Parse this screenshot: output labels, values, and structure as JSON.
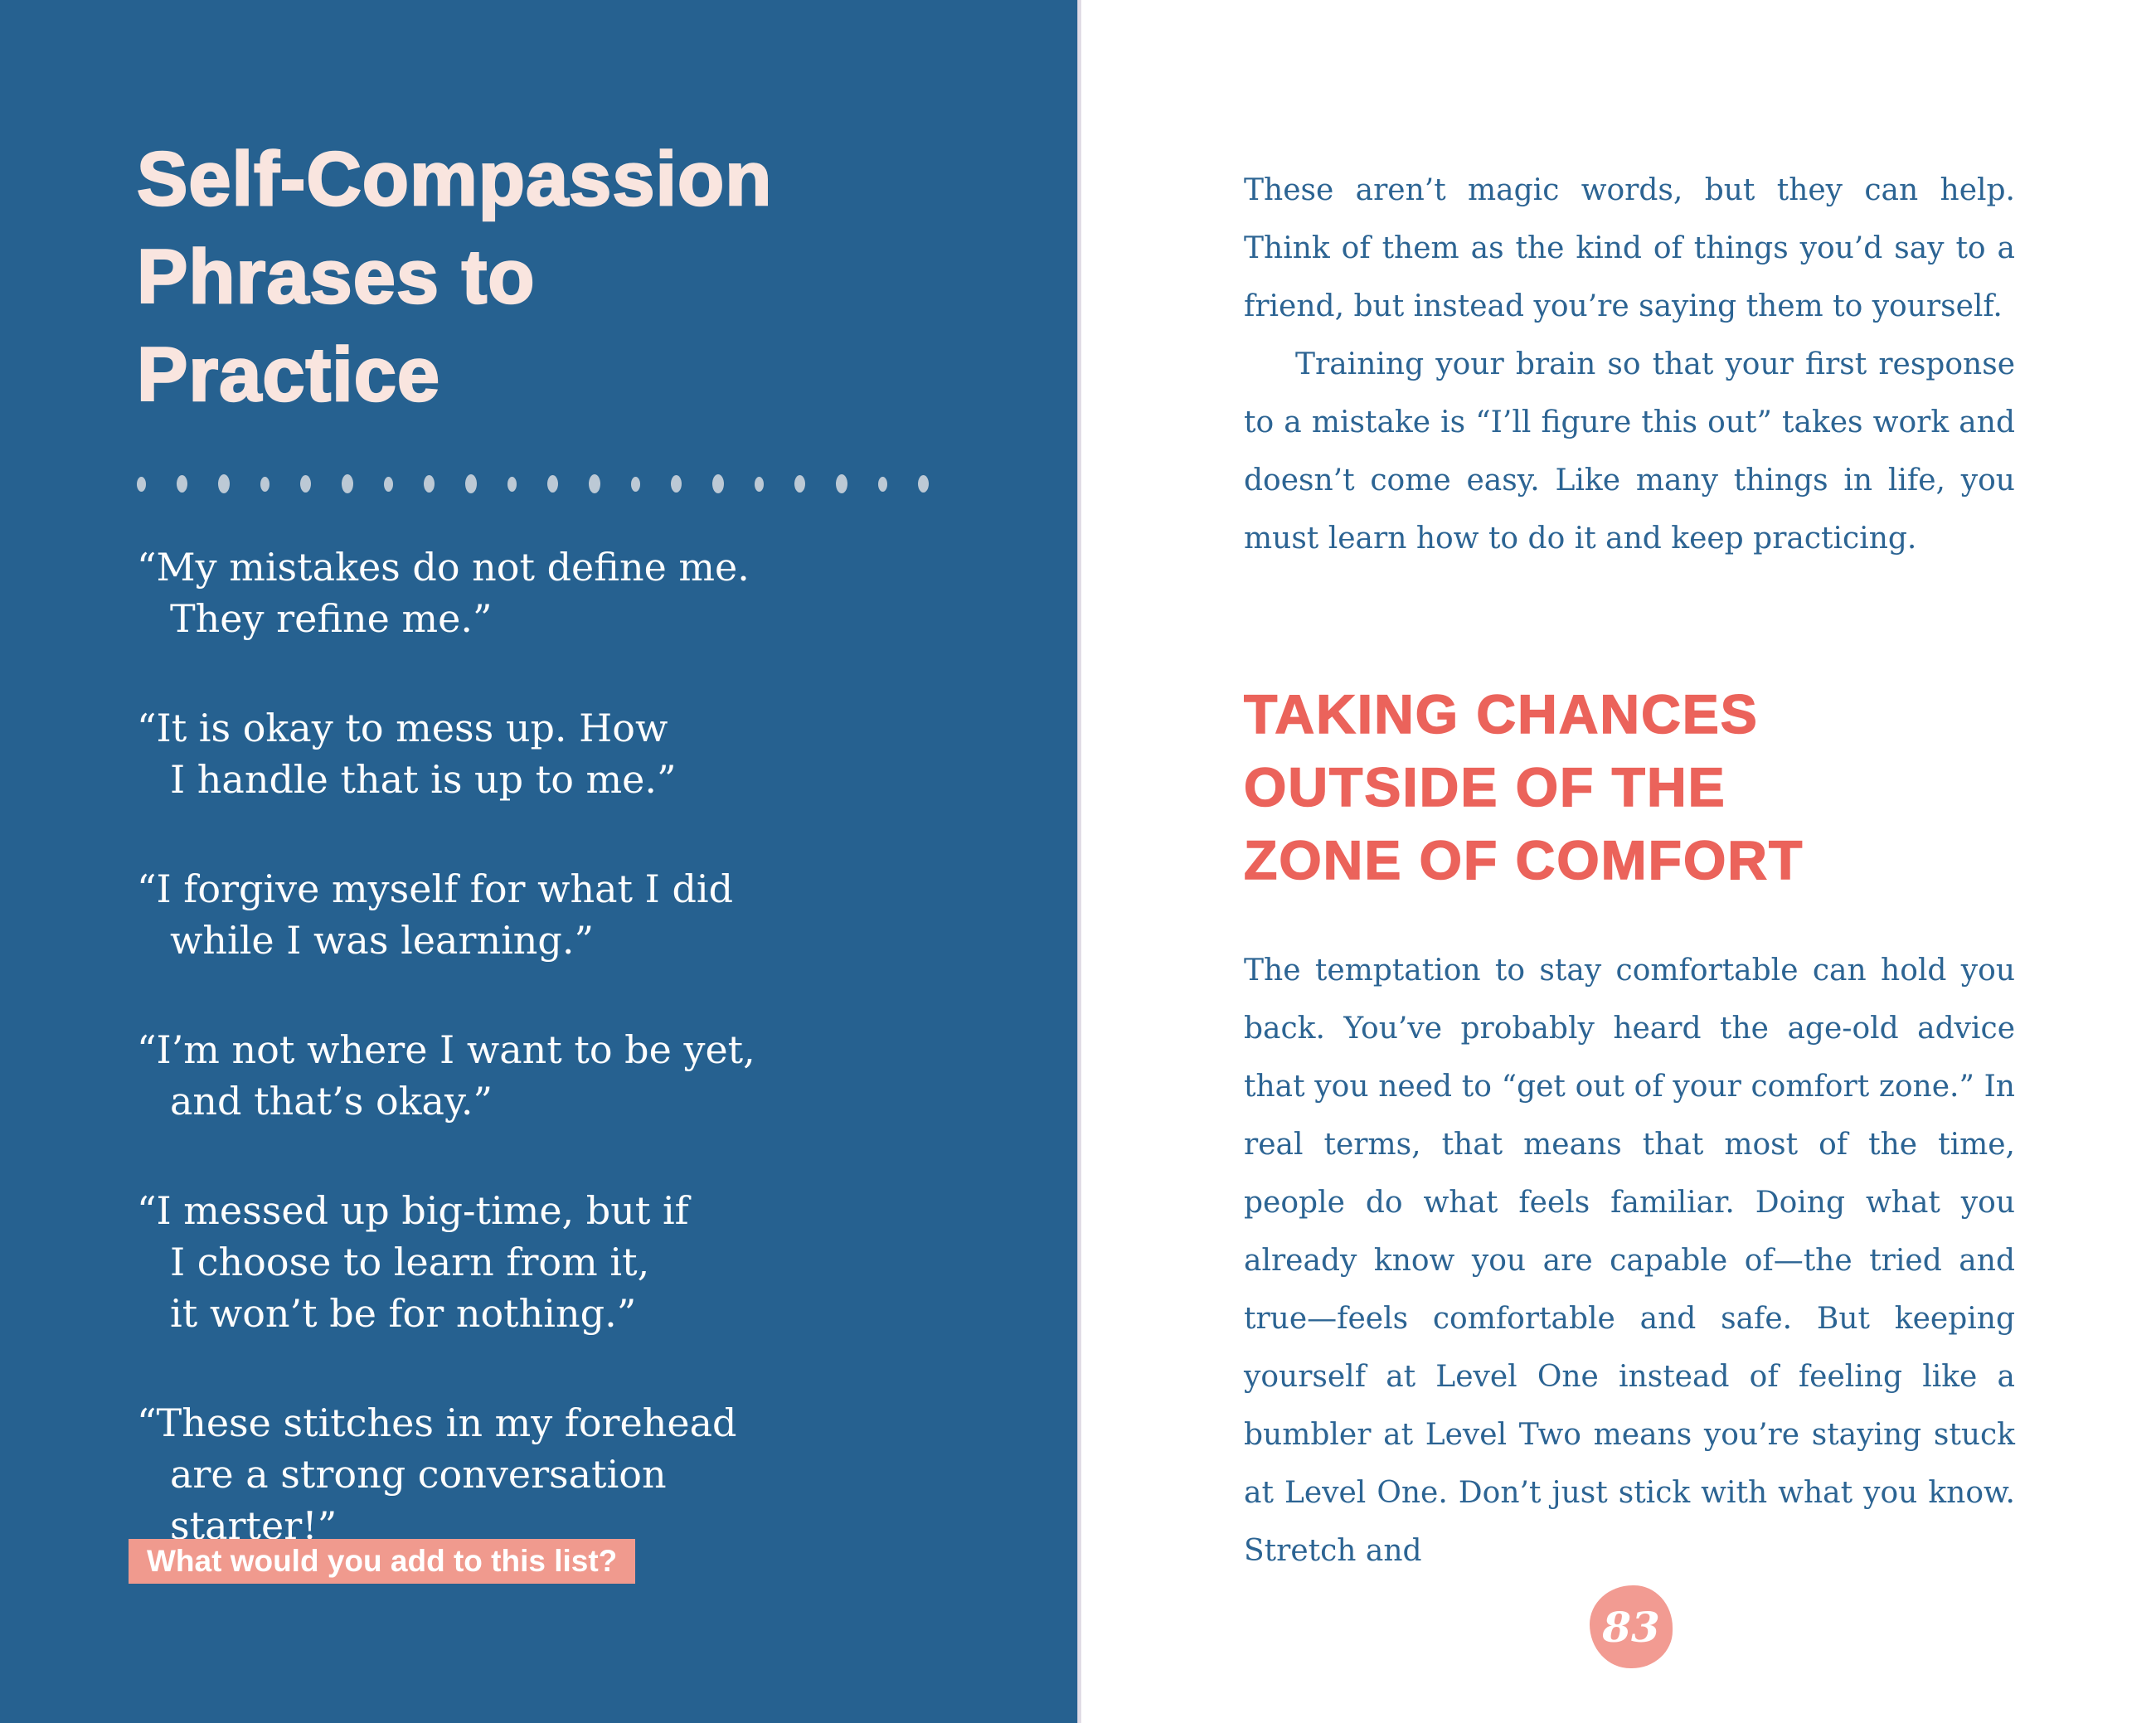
{
  "colors": {
    "blue_bg": "#266190",
    "pink_title": "#F9E5DF",
    "dot": "#BCC9D5",
    "salmon": "#F09A8E",
    "badge": "#F29B92",
    "red_heading": "#EB635B",
    "body_blue": "#2C6493",
    "gutter": "#D9D3E0"
  },
  "left_page": {
    "title_lines": [
      "Self-Compassion",
      "Phrases to",
      "Practice"
    ],
    "divider_dots": 20,
    "phrases": [
      {
        "lines": [
          "“My mistakes do not define me.",
          "They refine me.”"
        ]
      },
      {
        "lines": [
          "“It is okay to mess up. How",
          "I handle that is up to me.”"
        ]
      },
      {
        "lines": [
          "“I forgive myself for what I did",
          "while I was learning.”"
        ]
      },
      {
        "lines": [
          "“I’m not where I want to be yet,",
          "and that’s okay.”"
        ]
      },
      {
        "lines": [
          "“I messed up big-time, but if",
          "I choose to learn from it,",
          "it won’t be for nothing.”"
        ]
      },
      {
        "lines": [
          "“These stitches in my forehead",
          "are a strong conversation",
          "starter!”"
        ]
      }
    ],
    "callout_label": "What would you add to this list?"
  },
  "right_page": {
    "intro_paragraphs": [
      {
        "text": "These aren’t magic words, but they can help. Think of them as the kind of things you’d say to a friend, but instead you’re saying them to yourself."
      },
      {
        "text": "Training your brain so that your first response to a mistake is “I’ll figure this out” takes work and doesn’t come easy. Like many things in life, you must learn how to do it and keep practicing."
      }
    ],
    "section_heading_lines": [
      "TAKING CHANCES",
      "OUTSIDE OF THE",
      "ZONE OF COMFORT"
    ],
    "body_paragraph": "The temptation to stay comfortable can hold you back. You’ve probably heard the age-old advice that you need to “get out of your comfort zone.” In real terms, that means that most of the time, people do what feels familiar. Doing what you already know you are capable of—the tried and true—feels comfortable and safe. But keeping yourself at Level One instead of feeling like a bumbler at Level Two means you’re staying stuck at Level One. Don’t just stick with what you know. Stretch and",
    "page_number": "83"
  }
}
